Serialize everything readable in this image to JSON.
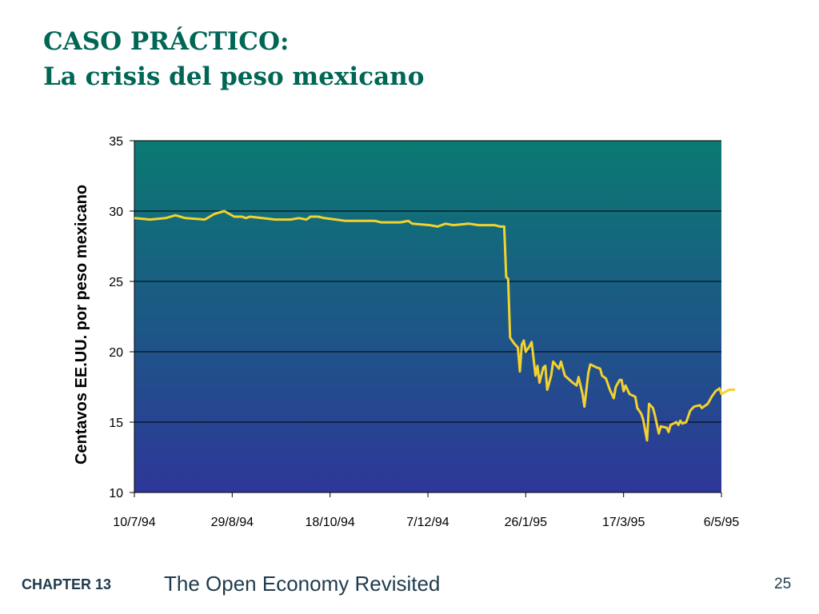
{
  "slide": {
    "title_line1": "CASO PRÁCTICO:",
    "title_line2": "La crisis del peso mexicano",
    "chapter_label": "CHAPTER 13",
    "book_title": "The Open Economy Revisited",
    "page_number": "25"
  },
  "chart_data": {
    "type": "line",
    "title": "",
    "xlabel": "",
    "ylabel": "Centavos EE.UU. por peso mexicano",
    "ylim": [
      10,
      35
    ],
    "yticks": [
      10,
      15,
      20,
      25,
      30,
      35
    ],
    "xlim": [
      "1994-07-10",
      "1995-05-06"
    ],
    "xtick_labels": [
      "10/7/94",
      "29/8/94",
      "18/10/94",
      "7/12/94",
      "26/1/95",
      "17/3/95",
      "6/5/95"
    ],
    "xtick_dates": [
      "1994-07-10",
      "1994-08-29",
      "1994-10-18",
      "1994-12-07",
      "1995-01-26",
      "1995-03-17",
      "1995-05-06"
    ],
    "grid": "horizontal",
    "line_color": "#f2d22e",
    "background_top_color": "#0a7a72",
    "background_bottom_color": "#2e3799",
    "series": [
      {
        "points": [
          [
            "1994-07-10",
            29.5
          ],
          [
            "1994-07-18",
            29.4
          ],
          [
            "1994-07-26",
            29.5
          ],
          [
            "1994-07-31",
            29.7
          ],
          [
            "1994-08-05",
            29.5
          ],
          [
            "1994-08-15",
            29.4
          ],
          [
            "1994-08-20",
            29.8
          ],
          [
            "1994-08-25",
            30.0
          ],
          [
            "1994-08-30",
            29.6
          ],
          [
            "1994-09-03",
            29.6
          ],
          [
            "1994-09-05",
            29.5
          ],
          [
            "1994-09-07",
            29.6
          ],
          [
            "1994-09-20",
            29.4
          ],
          [
            "1994-09-28",
            29.4
          ],
          [
            "1994-10-02",
            29.5
          ],
          [
            "1994-10-06",
            29.4
          ],
          [
            "1994-10-08",
            29.6
          ],
          [
            "1994-10-12",
            29.6
          ],
          [
            "1994-10-15",
            29.5
          ],
          [
            "1994-10-21",
            29.4
          ],
          [
            "1994-10-26",
            29.3
          ],
          [
            "1994-11-01",
            29.3
          ],
          [
            "1994-11-08",
            29.3
          ],
          [
            "1994-11-10",
            29.3
          ],
          [
            "1994-11-13",
            29.2
          ],
          [
            "1994-11-23",
            29.2
          ],
          [
            "1994-11-27",
            29.3
          ],
          [
            "1994-11-29",
            29.1
          ],
          [
            "1994-12-08",
            29.0
          ],
          [
            "1994-12-12",
            28.9
          ],
          [
            "1994-12-16",
            29.1
          ],
          [
            "1994-12-20",
            29.0
          ],
          [
            "1994-12-28",
            29.1
          ],
          [
            "1995-01-02",
            29.0
          ],
          [
            "1995-01-10",
            29.0
          ],
          [
            "1995-01-13",
            28.9
          ],
          [
            "1995-01-15",
            28.9
          ],
          [
            "1995-01-16",
            25.3
          ],
          [
            "1995-01-17",
            25.2
          ],
          [
            "1995-01-18",
            21.0
          ],
          [
            "1995-01-20",
            20.6
          ],
          [
            "1995-01-22",
            20.3
          ],
          [
            "1995-01-23",
            18.6
          ],
          [
            "1995-01-24",
            20.5
          ],
          [
            "1995-01-25",
            20.8
          ],
          [
            "1995-01-26",
            20.0
          ],
          [
            "1995-01-28",
            20.4
          ],
          [
            "1995-01-29",
            20.7
          ],
          [
            "1995-01-31",
            18.3
          ],
          [
            "1995-02-01",
            19.0
          ],
          [
            "1995-02-02",
            17.8
          ],
          [
            "1995-02-04",
            18.9
          ],
          [
            "1995-02-05",
            19.0
          ],
          [
            "1995-02-06",
            17.3
          ],
          [
            "1995-02-08",
            18.3
          ],
          [
            "1995-02-09",
            19.3
          ],
          [
            "1995-02-12",
            18.8
          ],
          [
            "1995-02-13",
            19.3
          ],
          [
            "1995-02-15",
            18.3
          ],
          [
            "1995-02-19",
            17.8
          ],
          [
            "1995-02-21",
            17.6
          ],
          [
            "1995-02-22",
            18.2
          ],
          [
            "1995-02-24",
            17.0
          ],
          [
            "1995-02-25",
            16.1
          ],
          [
            "1995-02-27",
            18.5
          ],
          [
            "1995-02-28",
            19.1
          ],
          [
            "1995-03-03",
            18.9
          ],
          [
            "1995-03-05",
            18.8
          ],
          [
            "1995-03-06",
            18.3
          ],
          [
            "1995-03-08",
            18.1
          ],
          [
            "1995-03-10",
            17.3
          ],
          [
            "1995-03-12",
            16.7
          ],
          [
            "1995-03-13",
            17.5
          ],
          [
            "1995-03-15",
            18.0
          ],
          [
            "1995-03-16",
            18.0
          ],
          [
            "1995-03-17",
            17.2
          ],
          [
            "1995-03-18",
            17.6
          ],
          [
            "1995-03-20",
            17.0
          ],
          [
            "1995-03-23",
            16.8
          ],
          [
            "1995-03-24",
            16.0
          ],
          [
            "1995-03-26",
            15.6
          ],
          [
            "1995-03-27",
            15.2
          ],
          [
            "1995-03-29",
            13.7
          ],
          [
            "1995-03-30",
            16.3
          ],
          [
            "1995-04-01",
            16.0
          ],
          [
            "1995-04-02",
            15.5
          ],
          [
            "1995-04-04",
            14.2
          ],
          [
            "1995-04-05",
            14.7
          ],
          [
            "1995-04-08",
            14.6
          ],
          [
            "1995-04-09",
            14.3
          ],
          [
            "1995-04-10",
            14.8
          ],
          [
            "1995-04-13",
            15.0
          ],
          [
            "1995-04-14",
            14.8
          ],
          [
            "1995-04-15",
            15.1
          ],
          [
            "1995-04-16",
            14.9
          ],
          [
            "1995-04-18",
            15.0
          ],
          [
            "1995-04-20",
            15.8
          ],
          [
            "1995-04-22",
            16.1
          ],
          [
            "1995-04-25",
            16.2
          ],
          [
            "1995-04-26",
            16.0
          ],
          [
            "1995-04-29",
            16.3
          ],
          [
            "1995-05-01",
            16.8
          ],
          [
            "1995-05-03",
            17.2
          ],
          [
            "1995-05-05",
            17.4
          ],
          [
            "1995-05-06",
            17.0
          ],
          [
            "1995-05-10",
            17.3
          ],
          [
            "1995-05-13",
            17.3
          ]
        ]
      }
    ]
  }
}
